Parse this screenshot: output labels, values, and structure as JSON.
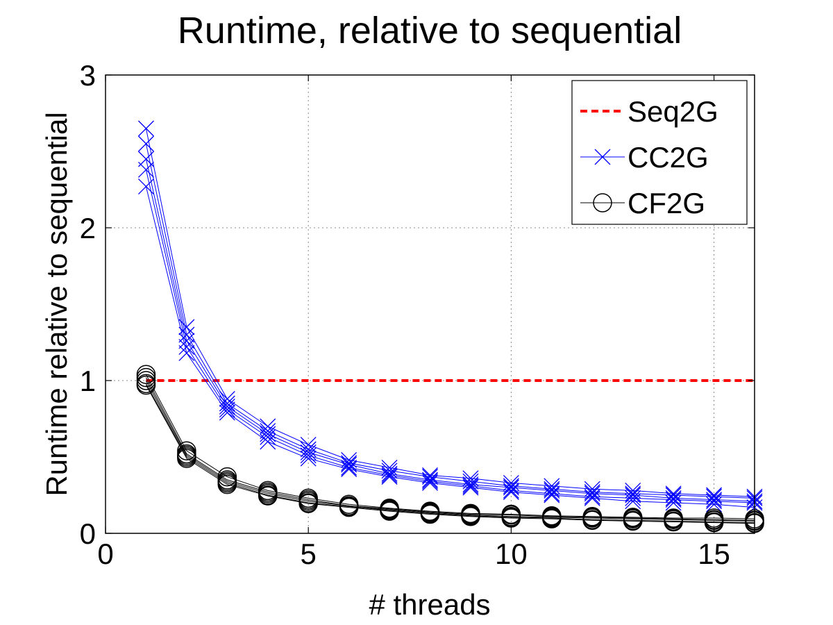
{
  "chart_data": {
    "type": "line",
    "title": "Runtime, relative to sequential",
    "xlabel": "# threads",
    "ylabel": "Runtime relative to sequential",
    "xlim": [
      0,
      16
    ],
    "ylim": [
      0,
      3
    ],
    "xticks": [
      0,
      5,
      10,
      15
    ],
    "yticks": [
      0,
      1,
      2,
      3
    ],
    "grid": true,
    "legend_position": "top-right",
    "series": [
      {
        "name": "Seq2G",
        "color": "#ff0000",
        "style": "dashed",
        "marker": "none",
        "runs": [
          {
            "x": [
              1,
              16
            ],
            "y": [
              1.0,
              1.0
            ]
          }
        ]
      },
      {
        "name": "CC2G",
        "color": "#0000ff",
        "style": "solid",
        "marker": "x",
        "runs": [
          {
            "x": [
              1,
              2,
              3,
              4,
              5,
              6,
              7,
              8,
              9,
              10,
              11,
              12,
              13,
              14,
              15,
              16
            ],
            "y": [
              2.65,
              1.35,
              0.88,
              0.7,
              0.58,
              0.48,
              0.43,
              0.38,
              0.36,
              0.33,
              0.31,
              0.29,
              0.28,
              0.26,
              0.25,
              0.24
            ]
          },
          {
            "x": [
              1,
              2,
              3,
              4,
              5,
              6,
              7,
              8,
              9,
              10,
              11,
              12,
              13,
              14,
              15,
              16
            ],
            "y": [
              2.55,
              1.3,
              0.85,
              0.67,
              0.55,
              0.46,
              0.41,
              0.37,
              0.34,
              0.31,
              0.29,
              0.27,
              0.26,
              0.25,
              0.24,
              0.23
            ]
          },
          {
            "x": [
              1,
              2,
              3,
              4,
              5,
              6,
              7,
              8,
              9,
              10,
              11,
              12,
              13,
              14,
              15,
              16
            ],
            "y": [
              2.45,
              1.26,
              0.83,
              0.65,
              0.53,
              0.45,
              0.39,
              0.35,
              0.32,
              0.3,
              0.28,
              0.26,
              0.25,
              0.23,
              0.22,
              0.21
            ]
          },
          {
            "x": [
              1,
              2,
              3,
              4,
              5,
              6,
              7,
              8,
              9,
              10,
              11,
              12,
              13,
              14,
              15,
              16
            ],
            "y": [
              2.38,
              1.22,
              0.81,
              0.63,
              0.51,
              0.43,
              0.38,
              0.34,
              0.31,
              0.28,
              0.26,
              0.24,
              0.23,
              0.22,
              0.21,
              0.2
            ]
          },
          {
            "x": [
              1,
              2,
              3,
              4,
              5,
              6,
              7,
              8,
              9,
              10,
              11,
              12,
              13,
              14,
              15,
              16
            ],
            "y": [
              2.27,
              1.18,
              0.79,
              0.6,
              0.49,
              0.42,
              0.37,
              0.33,
              0.3,
              0.27,
              0.25,
              0.23,
              0.21,
              0.2,
              0.19,
              0.17
            ]
          }
        ]
      },
      {
        "name": "CF2G",
        "color": "#000000",
        "style": "solid",
        "marker": "o",
        "runs": [
          {
            "x": [
              1,
              2,
              3,
              4,
              5,
              6,
              7,
              8,
              9,
              10,
              11,
              12,
              13,
              14,
              15,
              16
            ],
            "y": [
              1.04,
              0.54,
              0.37,
              0.28,
              0.23,
              0.19,
              0.165,
              0.145,
              0.13,
              0.125,
              0.115,
              0.11,
              0.105,
              0.1,
              0.1,
              0.095
            ]
          },
          {
            "x": [
              1,
              2,
              3,
              4,
              5,
              6,
              7,
              8,
              9,
              10,
              11,
              12,
              13,
              14,
              15,
              16
            ],
            "y": [
              1.02,
              0.52,
              0.35,
              0.27,
              0.22,
              0.18,
              0.16,
              0.14,
              0.125,
              0.12,
              0.11,
              0.105,
              0.1,
              0.095,
              0.09,
              0.085
            ]
          },
          {
            "x": [
              1,
              2,
              3,
              4,
              5,
              6,
              7,
              8,
              9,
              10,
              11,
              12,
              13,
              14,
              15,
              16
            ],
            "y": [
              1.0,
              0.51,
              0.34,
              0.26,
              0.21,
              0.18,
              0.155,
              0.135,
              0.12,
              0.11,
              0.105,
              0.1,
              0.095,
              0.09,
              0.085,
              0.08
            ]
          },
          {
            "x": [
              1,
              2,
              3,
              4,
              5,
              6,
              7,
              8,
              9,
              10,
              11,
              12,
              13,
              14,
              15,
              16
            ],
            "y": [
              0.98,
              0.5,
              0.33,
              0.25,
              0.2,
              0.175,
              0.15,
              0.13,
              0.115,
              0.105,
              0.1,
              0.09,
              0.085,
              0.08,
              0.075,
              0.07
            ]
          },
          {
            "x": [
              1,
              2,
              3,
              4,
              5,
              6,
              7,
              8,
              9,
              10,
              11,
              12,
              13,
              14,
              15,
              16
            ],
            "y": [
              0.97,
              0.49,
              0.32,
              0.245,
              0.195,
              0.17,
              0.145,
              0.125,
              0.11,
              0.1,
              0.095,
              0.085,
              0.08,
              0.075,
              0.07,
              0.065
            ]
          }
        ]
      }
    ]
  }
}
